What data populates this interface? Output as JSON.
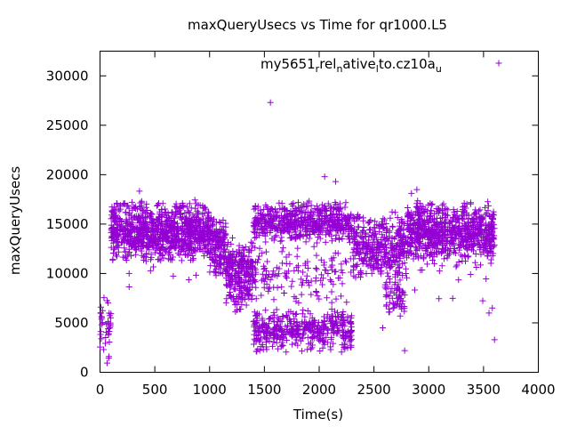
{
  "chart_data": {
    "type": "scatter",
    "title": "maxQueryUsecs vs Time for qr1000.L5",
    "xlabel": "Time(s)",
    "ylabel": "maxQueryUsecs",
    "xlim": [
      0,
      4000
    ],
    "ylim": [
      0,
      32500
    ],
    "xticks": [
      0,
      500,
      1000,
      1500,
      2000,
      2500,
      3000,
      3500,
      4000
    ],
    "yticks": [
      0,
      5000,
      10000,
      15000,
      20000,
      25000,
      30000
    ],
    "grid": false,
    "legend_position": "top-right",
    "series": [
      {
        "name_parts": [
          {
            "text": "my5651"
          },
          {
            "text": "rel",
            "sub": "r"
          },
          {
            "text": "ative",
            "sub": "n"
          },
          {
            "text": "to.cz10a",
            "sub": "l"
          },
          {
            "text": "",
            "sub": "u"
          }
        ],
        "color": "#9400d3",
        "marker": "plus",
        "segments": [
          {
            "x": [
              0,
              100
            ],
            "ymin": 500,
            "ymax": 8000,
            "n": 40
          },
          {
            "x": [
              100,
              1000
            ],
            "ymin": 11000,
            "ymax": 17500,
            "n": 900
          },
          {
            "x": [
              100,
              1000
            ],
            "ymin": 8500,
            "ymax": 19000,
            "n": 60
          },
          {
            "x": [
              1000,
              1150
            ],
            "ymin": 9500,
            "ymax": 16000,
            "n": 160
          },
          {
            "x": [
              1150,
              1400
            ],
            "ymin": 6000,
            "ymax": 14000,
            "n": 260
          },
          {
            "x": [
              1400,
              2300
            ],
            "ymin": 13000,
            "ymax": 17500,
            "n": 560
          },
          {
            "x": [
              1400,
              2300
            ],
            "ymin": 2000,
            "ymax": 6500,
            "n": 420
          },
          {
            "x": [
              1400,
              2300
            ],
            "ymin": 6500,
            "ymax": 13000,
            "n": 140
          },
          {
            "x": [
              2300,
              2800
            ],
            "ymin": 9000,
            "ymax": 16500,
            "n": 380
          },
          {
            "x": [
              2600,
              2800
            ],
            "ymin": 5500,
            "ymax": 9500,
            "n": 60
          },
          {
            "x": [
              2800,
              3600
            ],
            "ymin": 11000,
            "ymax": 17500,
            "n": 720
          },
          {
            "x": [
              2800,
              3600
            ],
            "ymin": 7000,
            "ymax": 19500,
            "n": 60
          }
        ],
        "outliers": [
          {
            "x": 1555,
            "y": 27300
          },
          {
            "x": 2780,
            "y": 2200
          },
          {
            "x": 3600,
            "y": 3300
          },
          {
            "x": 3580,
            "y": 6500
          },
          {
            "x": 3550,
            "y": 6000
          },
          {
            "x": 2580,
            "y": 4500
          },
          {
            "x": 2050,
            "y": 19800
          },
          {
            "x": 2150,
            "y": 19300
          }
        ]
      }
    ]
  }
}
